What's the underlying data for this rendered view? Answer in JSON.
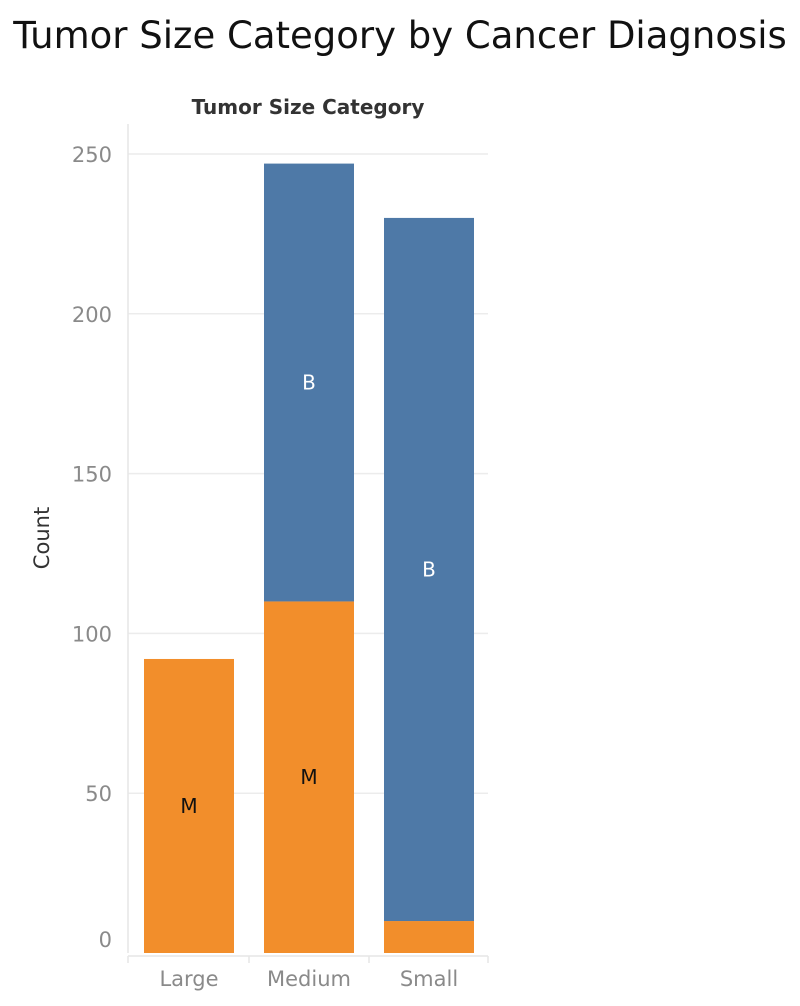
{
  "chart_data": {
    "type": "bar",
    "stacked": true,
    "title": "Tumor Size Category by Cancer Diagnosis",
    "column_header": "Tumor Size Category",
    "ylabel": "Count",
    "xlabel": "",
    "categories": [
      "Large",
      "Medium",
      "Small"
    ],
    "series": [
      {
        "name": "M",
        "color": "#f28e2b",
        "label_color": "#111111",
        "values": [
          92,
          110,
          10
        ]
      },
      {
        "name": "B",
        "color": "#4e79a7",
        "label_color": "#ffffff",
        "values": [
          0,
          137,
          220
        ]
      }
    ],
    "yticks": [
      0,
      50,
      100,
      150,
      200,
      250
    ],
    "ylim": [
      0,
      260
    ],
    "grid": true,
    "legend": "none",
    "segment_labels": [
      {
        "category": "Large",
        "series": "M",
        "text": "M"
      },
      {
        "category": "Medium",
        "series": "M",
        "text": "M"
      },
      {
        "category": "Medium",
        "series": "B",
        "text": "B"
      },
      {
        "category": "Small",
        "series": "B",
        "text": "B"
      }
    ]
  }
}
